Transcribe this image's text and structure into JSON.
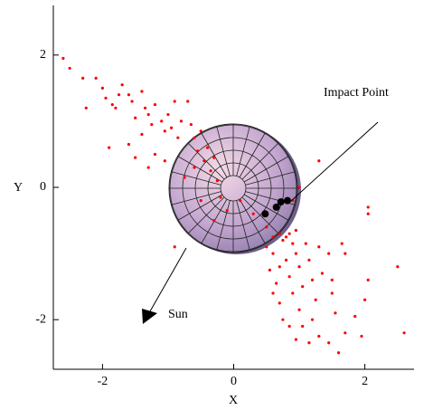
{
  "chart_data": {
    "type": "scatter",
    "x_label": "X",
    "y_label": "Y",
    "xlim": [
      -2.75,
      2.75
    ],
    "ylim": [
      -2.75,
      2.75
    ],
    "xticks": [
      -2,
      0,
      2
    ],
    "yticks": [
      -2,
      0,
      2
    ],
    "annotations": [
      {
        "text": "Impact Point"
      },
      {
        "text": "Sun"
      }
    ],
    "series": [
      {
        "color": "#ff0000",
        "x": [
          -2.6,
          -2.5,
          -2.3,
          -2.1,
          -2.25,
          -2.0,
          -1.95,
          -1.85,
          -1.8,
          -1.75,
          -1.7,
          -1.6,
          -1.55,
          -1.5,
          -1.4,
          -1.35,
          -1.3,
          -1.25,
          -1.2,
          -1.1,
          -1.05,
          -1.0,
          -0.95,
          -0.9,
          -0.85,
          -0.8,
          -0.7,
          -0.65,
          -0.6,
          -0.55,
          -0.5,
          -0.45,
          -0.4,
          -0.35,
          -0.3,
          -1.6,
          -1.9,
          -1.5,
          -1.2,
          -0.75,
          -0.6,
          -0.25,
          -0.2,
          -0.1,
          -0.3,
          -0.5,
          -0.9,
          -1.3,
          -1.4,
          -1.05,
          0.1,
          0.3,
          0.5,
          0.6,
          0.7,
          0.75,
          0.8,
          0.85,
          0.9,
          0.95,
          0.6,
          0.55,
          0.65,
          0.7,
          0.8,
          0.85,
          0.9,
          0.95,
          1.0,
          1.05,
          1.1,
          1.15,
          1.2,
          1.25,
          1.3,
          1.35,
          1.45,
          1.5,
          1.55,
          0.7,
          0.75,
          0.85,
          0.95,
          1.05,
          1.15,
          1.3,
          1.45,
          1.6,
          1.7,
          1.85,
          1.95,
          2.0,
          2.05,
          1.7,
          1.65,
          2.05,
          2.05,
          2.5,
          2.6,
          0.6,
          1.0,
          1.2,
          1.5,
          0.5,
          1.3,
          1.0,
          0.9
        ],
        "y": [
          1.95,
          1.8,
          1.65,
          1.65,
          1.2,
          1.5,
          1.35,
          1.25,
          1.2,
          1.4,
          1.55,
          1.4,
          1.3,
          1.05,
          1.45,
          1.2,
          1.1,
          0.95,
          1.25,
          1.0,
          0.85,
          1.1,
          0.9,
          1.3,
          0.75,
          1.0,
          1.3,
          0.95,
          0.75,
          0.55,
          0.85,
          0.4,
          0.6,
          0.25,
          0.45,
          0.65,
          0.6,
          0.45,
          0.5,
          0.15,
          0.3,
          0.1,
          -0.15,
          -0.35,
          -0.5,
          -0.2,
          -0.9,
          0.3,
          0.8,
          0.4,
          -0.2,
          -0.4,
          -0.6,
          -0.75,
          -0.7,
          -0.8,
          -0.75,
          -0.7,
          -0.85,
          -0.65,
          -1.0,
          -1.25,
          -1.45,
          -1.2,
          -1.1,
          -1.35,
          -1.6,
          -1.0,
          -1.2,
          -1.5,
          -0.85,
          -1.1,
          -1.4,
          -1.7,
          -0.9,
          -1.3,
          -1.0,
          -1.6,
          -1.9,
          -1.75,
          -2.0,
          -2.1,
          -2.3,
          -2.1,
          -2.35,
          -2.25,
          -2.35,
          -2.5,
          -2.2,
          -1.95,
          -2.25,
          -1.7,
          -1.4,
          -1.0,
          -0.85,
          -0.4,
          -0.3,
          -1.2,
          -2.2,
          -1.6,
          -1.85,
          -2.0,
          -1.4,
          -0.9,
          0.4,
          0.0,
          -0.2
        ]
      },
      {
        "color": "#000000",
        "x": [
          0.48,
          0.65,
          0.72,
          0.82
        ],
        "y": [
          -0.4,
          -0.3,
          -0.22,
          -0.2
        ]
      }
    ]
  }
}
